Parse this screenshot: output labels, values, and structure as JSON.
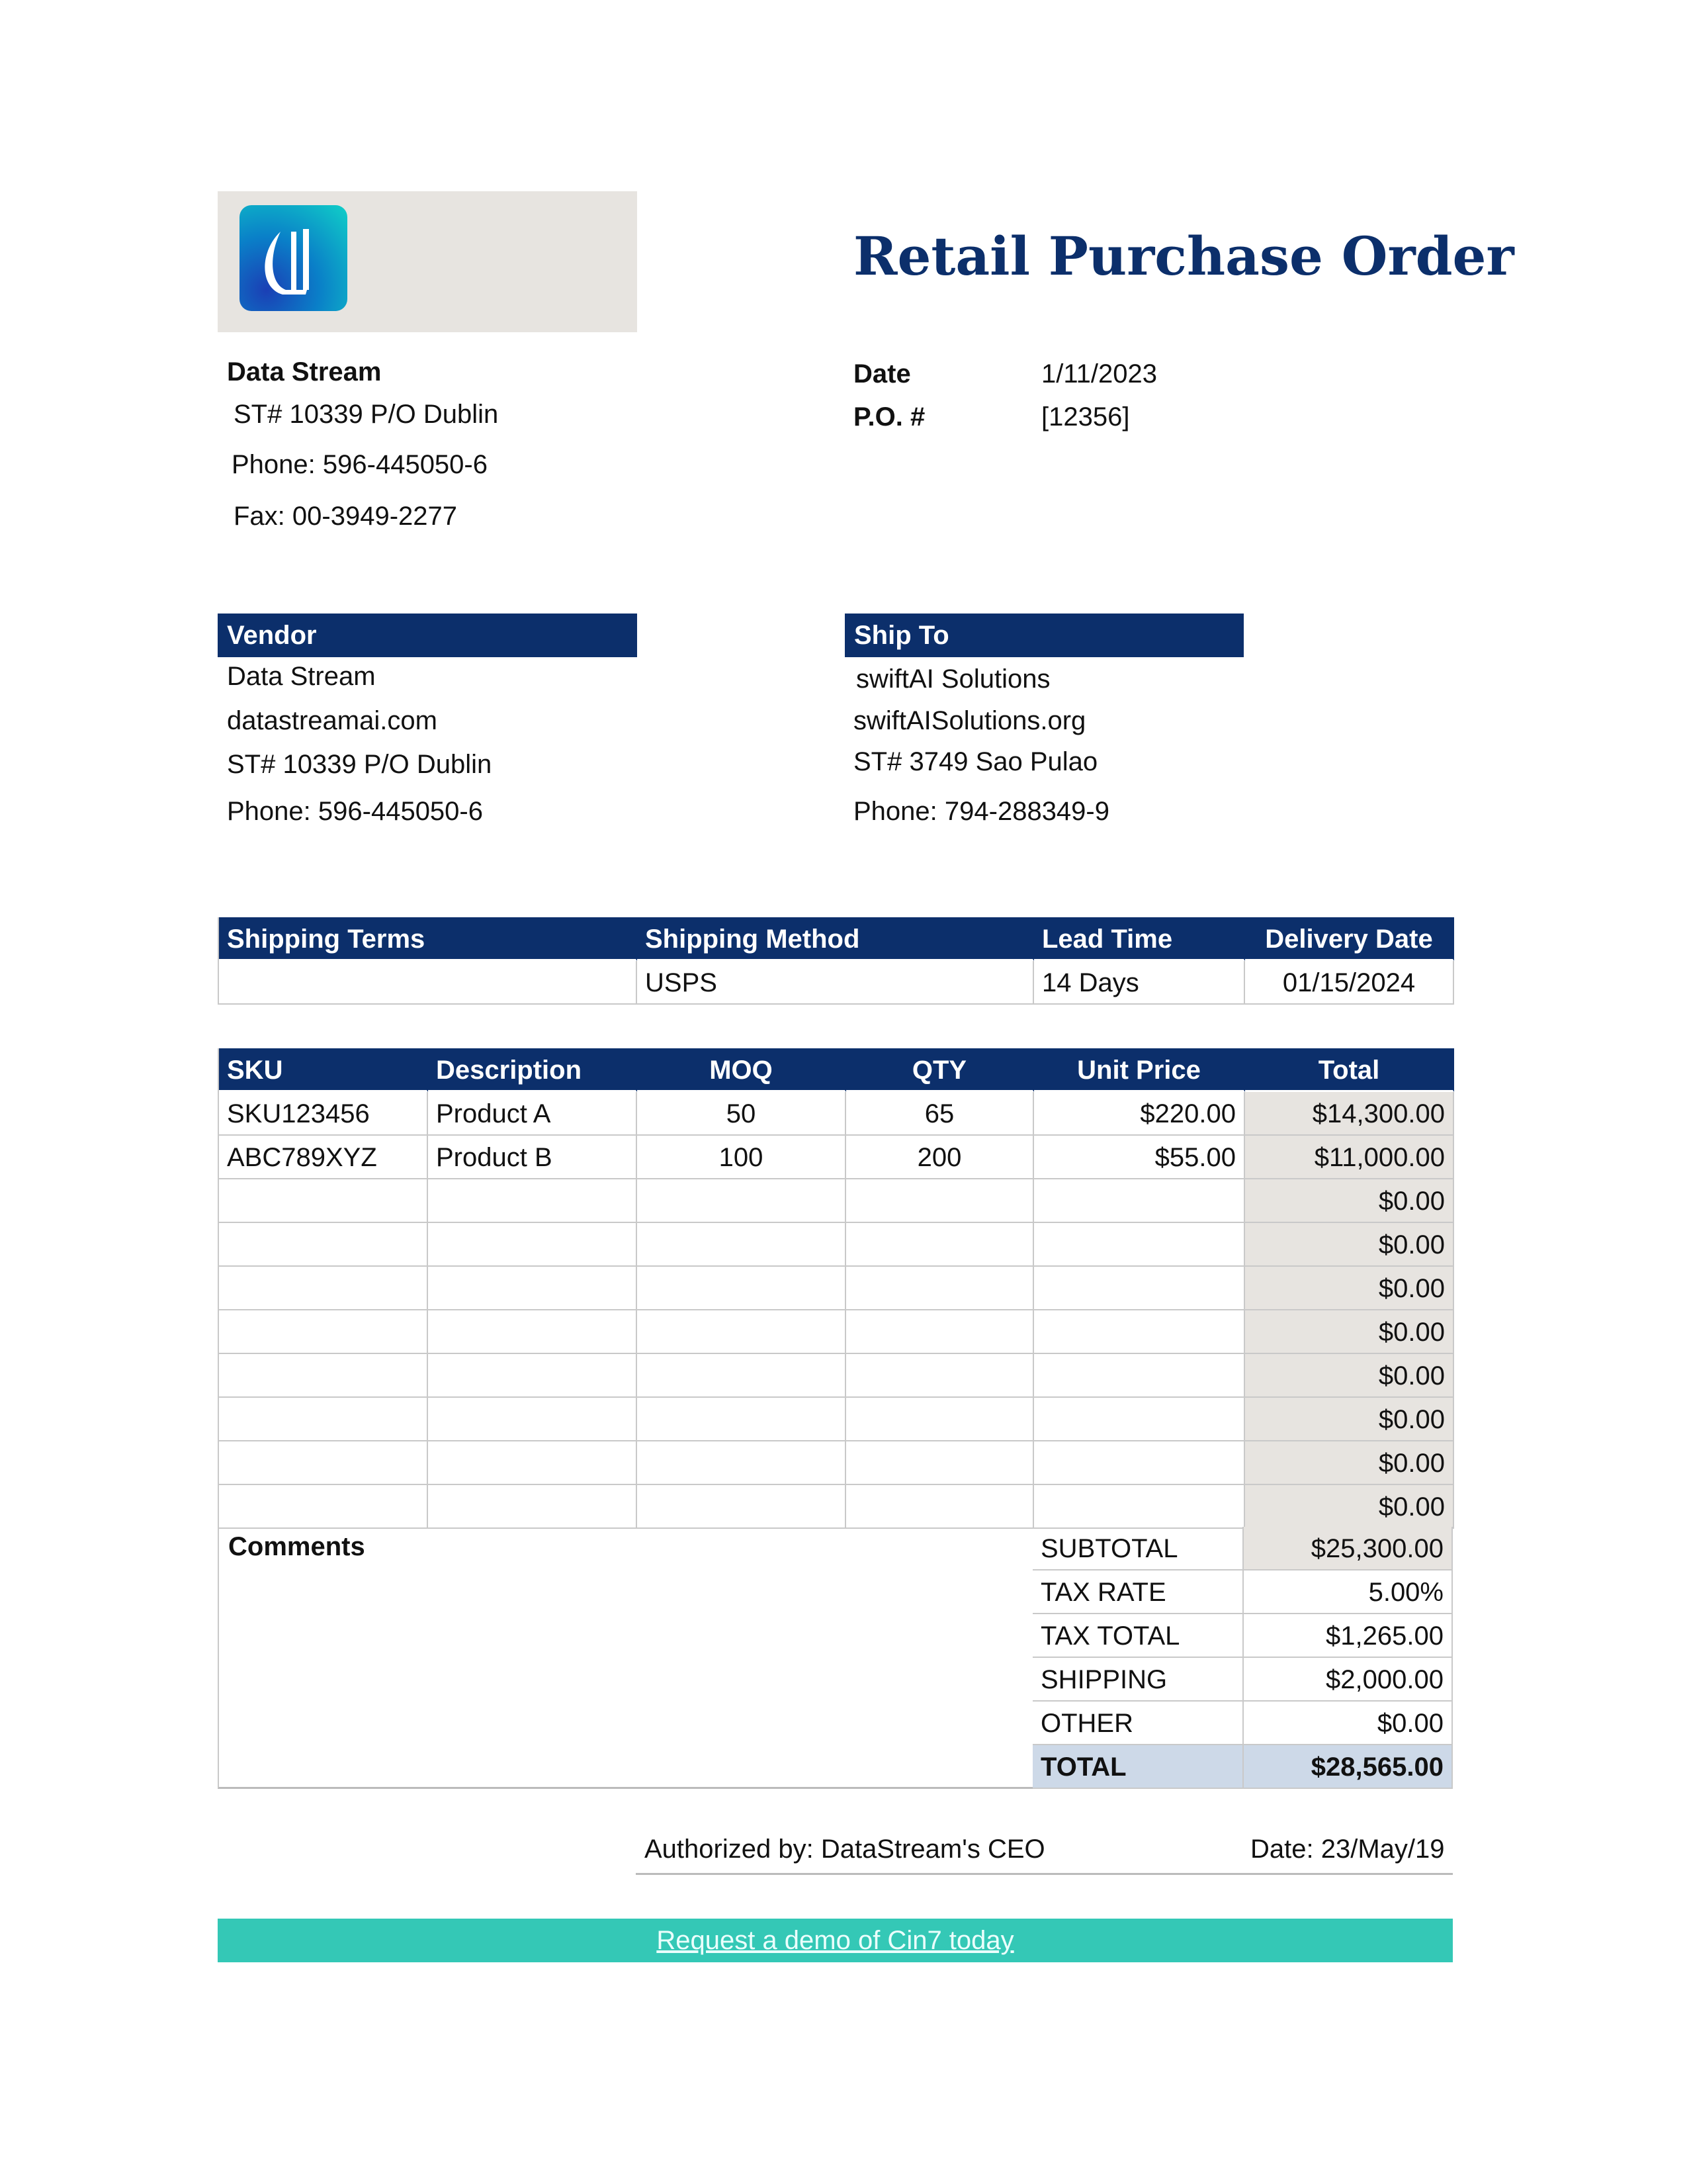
{
  "title": "Retail Purchase Order",
  "logo": {
    "icon": "data-stream-logo"
  },
  "company": {
    "name": "Data Stream",
    "address": "ST# 10339 P/O Dublin",
    "phone": "Phone: 596-445050-6",
    "fax": "Fax: 00-3949-2277"
  },
  "meta": {
    "date_label": "Date",
    "date_value": "1/11/2023",
    "po_label": "P.O. #",
    "po_value": "[12356]"
  },
  "vendor": {
    "heading": "Vendor",
    "lines": [
      "Data Stream",
      "datastreamai.com",
      "ST# 10339 P/O Dublin",
      "Phone: 596-445050-6"
    ]
  },
  "ship_to": {
    "heading": "Ship To",
    "lines": [
      "swiftAI Solutions",
      "swiftAISolutions.org",
      "ST# 3749 Sao Pulao",
      "Phone: 794-288349-9"
    ]
  },
  "shipping": {
    "headers": [
      "Shipping Terms",
      "Shipping Method",
      "Lead Time",
      "Delivery Date"
    ],
    "row": [
      "",
      "USPS",
      "14 Days",
      "01/15/2024"
    ]
  },
  "items": {
    "headers": [
      "SKU",
      "Description",
      "MOQ",
      "QTY",
      "Unit Price",
      "Total"
    ],
    "rows": [
      [
        "SKU123456",
        "Product A",
        "50",
        "65",
        "$220.00",
        "$14,300.00"
      ],
      [
        "ABC789XYZ",
        "Product B",
        "100",
        "200",
        "$55.00",
        "$11,000.00"
      ],
      [
        "",
        "",
        "",
        "",
        "",
        "$0.00"
      ],
      [
        "",
        "",
        "",
        "",
        "",
        "$0.00"
      ],
      [
        "",
        "",
        "",
        "",
        "",
        "$0.00"
      ],
      [
        "",
        "",
        "",
        "",
        "",
        "$0.00"
      ],
      [
        "",
        "",
        "",
        "",
        "",
        "$0.00"
      ],
      [
        "",
        "",
        "",
        "",
        "",
        "$0.00"
      ],
      [
        "",
        "",
        "",
        "",
        "",
        "$0.00"
      ],
      [
        "",
        "",
        "",
        "",
        "",
        "$0.00"
      ]
    ]
  },
  "comments_label": "Comments",
  "summary": [
    {
      "label": "SUBTOTAL",
      "value": "$25,300.00"
    },
    {
      "label": "TAX RATE",
      "value": "5.00%"
    },
    {
      "label": "TAX TOTAL",
      "value": "$1,265.00"
    },
    {
      "label": "SHIPPING",
      "value": "$2,000.00"
    },
    {
      "label": "OTHER",
      "value": "$0.00"
    },
    {
      "label": "TOTAL",
      "value": "$28,565.00"
    }
  ],
  "authorization": {
    "authorized_by": "Authorized by: DataStream's CEO",
    "date": "Date: 23/May/19"
  },
  "footer": {
    "link_text": "Request a demo of Cin7 today",
    "color": "#34c8b6"
  },
  "colors": {
    "header": "#0c2f6b",
    "shade": "#e7e4e0",
    "total": "#cdd9e8"
  }
}
